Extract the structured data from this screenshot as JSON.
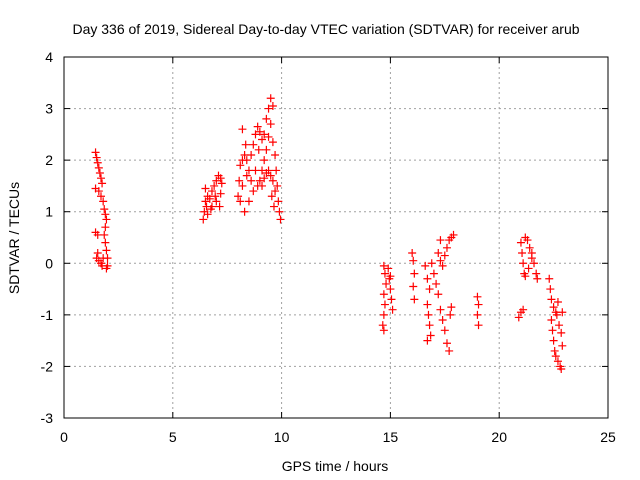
{
  "chart_data": {
    "type": "scatter",
    "title": "Day 336 of 2019, Sidereal Day-to-day VTEC variation (SDTVAR) for receiver arub",
    "xlabel": "GPS time / hours",
    "ylabel": "SDTVAR / TECUs",
    "xlim": [
      0,
      25
    ],
    "ylim": [
      -3,
      4
    ],
    "xticks": [
      0,
      5,
      10,
      15,
      20,
      25
    ],
    "yticks": [
      -3,
      -2,
      -1,
      0,
      1,
      2,
      3,
      4
    ],
    "grid": true,
    "marker": "+",
    "color": "#ff0000",
    "series": [
      {
        "name": "SDTVAR",
        "points": [
          [
            1.45,
            2.15
          ],
          [
            1.5,
            2.05
          ],
          [
            1.55,
            1.95
          ],
          [
            1.6,
            1.85
          ],
          [
            1.65,
            1.75
          ],
          [
            1.7,
            1.65
          ],
          [
            1.75,
            1.55
          ],
          [
            1.45,
            1.45
          ],
          [
            1.6,
            1.4
          ],
          [
            1.7,
            1.3
          ],
          [
            1.8,
            1.2
          ],
          [
            1.85,
            1.05
          ],
          [
            1.9,
            0.95
          ],
          [
            1.95,
            0.85
          ],
          [
            1.9,
            0.7
          ],
          [
            1.85,
            0.55
          ],
          [
            1.9,
            0.4
          ],
          [
            1.95,
            0.25
          ],
          [
            2.0,
            0.1
          ],
          [
            2.0,
            -0.05
          ],
          [
            1.95,
            -0.1
          ],
          [
            1.45,
            0.6
          ],
          [
            1.55,
            0.55
          ],
          [
            1.5,
            0.1
          ],
          [
            1.6,
            0.05
          ],
          [
            1.7,
            0.0
          ],
          [
            1.8,
            0.1
          ],
          [
            1.55,
            0.2
          ],
          [
            1.75,
            -0.05
          ],
          [
            6.4,
            0.85
          ],
          [
            6.45,
            1.0
          ],
          [
            6.5,
            1.2
          ],
          [
            6.55,
            1.1
          ],
          [
            6.6,
            1.3
          ],
          [
            6.7,
            1.25
          ],
          [
            6.8,
            1.4
          ],
          [
            6.9,
            1.5
          ],
          [
            7.0,
            1.6
          ],
          [
            7.1,
            1.7
          ],
          [
            7.2,
            1.65
          ],
          [
            7.25,
            1.55
          ],
          [
            6.6,
            0.95
          ],
          [
            6.8,
            1.1
          ],
          [
            7.0,
            1.2
          ],
          [
            7.2,
            1.35
          ],
          [
            6.5,
            1.45
          ],
          [
            6.75,
            1.05
          ],
          [
            6.95,
            1.3
          ],
          [
            7.15,
            1.1
          ],
          [
            8.0,
            1.3
          ],
          [
            8.05,
            1.6
          ],
          [
            8.1,
            1.9
          ],
          [
            8.2,
            2.0
          ],
          [
            8.3,
            2.1
          ],
          [
            8.4,
            2.0
          ],
          [
            8.5,
            1.8
          ],
          [
            8.6,
            1.6
          ],
          [
            8.7,
            1.4
          ],
          [
            8.5,
            1.2
          ],
          [
            8.3,
            1.0
          ],
          [
            8.1,
            1.2
          ],
          [
            8.2,
            1.5
          ],
          [
            8.4,
            1.7
          ],
          [
            8.6,
            2.1
          ],
          [
            8.7,
            2.3
          ],
          [
            8.8,
            2.5
          ],
          [
            8.9,
            2.65
          ],
          [
            9.0,
            2.55
          ],
          [
            9.1,
            2.4
          ],
          [
            9.2,
            2.5
          ],
          [
            9.3,
            2.8
          ],
          [
            9.4,
            3.0
          ],
          [
            9.5,
            3.2
          ],
          [
            9.6,
            3.05
          ],
          [
            9.5,
            2.7
          ],
          [
            9.4,
            2.45
          ],
          [
            9.3,
            2.2
          ],
          [
            9.2,
            2.0
          ],
          [
            9.1,
            1.8
          ],
          [
            9.0,
            1.6
          ],
          [
            9.1,
            1.5
          ],
          [
            9.2,
            1.65
          ],
          [
            9.3,
            1.75
          ],
          [
            9.4,
            1.8
          ],
          [
            9.5,
            1.7
          ],
          [
            9.6,
            1.6
          ],
          [
            9.7,
            1.4
          ],
          [
            9.75,
            1.8
          ],
          [
            9.8,
            1.5
          ],
          [
            9.85,
            1.2
          ],
          [
            9.9,
            1.0
          ],
          [
            9.95,
            0.85
          ],
          [
            9.7,
            2.1
          ],
          [
            9.6,
            2.35
          ],
          [
            8.9,
            1.5
          ],
          [
            8.8,
            1.8
          ],
          [
            8.95,
            2.2
          ],
          [
            9.55,
            1.3
          ],
          [
            9.65,
            1.1
          ],
          [
            8.35,
            2.3
          ],
          [
            8.2,
            2.6
          ],
          [
            14.7,
            -0.05
          ],
          [
            14.75,
            -0.2
          ],
          [
            14.8,
            -0.4
          ],
          [
            14.7,
            -0.6
          ],
          [
            14.75,
            -0.8
          ],
          [
            14.7,
            -1.0
          ],
          [
            14.65,
            -1.2
          ],
          [
            14.7,
            -1.3
          ],
          [
            14.9,
            -0.1
          ],
          [
            14.95,
            -0.3
          ],
          [
            15.0,
            -0.5
          ],
          [
            15.05,
            -0.7
          ],
          [
            15.1,
            -0.9
          ],
          [
            15.0,
            -0.25
          ],
          [
            16.0,
            0.2
          ],
          [
            16.05,
            0.05
          ],
          [
            16.1,
            -0.2
          ],
          [
            16.05,
            -0.45
          ],
          [
            16.1,
            -0.7
          ],
          [
            16.6,
            -0.05
          ],
          [
            16.7,
            -0.3
          ],
          [
            16.8,
            -0.5
          ],
          [
            16.7,
            -0.8
          ],
          [
            16.75,
            -1.0
          ],
          [
            16.8,
            -1.2
          ],
          [
            16.85,
            -1.4
          ],
          [
            16.7,
            -1.5
          ],
          [
            16.9,
            0.0
          ],
          [
            17.0,
            -0.2
          ],
          [
            17.1,
            -0.4
          ],
          [
            17.2,
            -0.6
          ],
          [
            17.3,
            -0.9
          ],
          [
            17.4,
            -1.1
          ],
          [
            17.5,
            -1.3
          ],
          [
            17.6,
            -1.55
          ],
          [
            17.7,
            -1.7
          ],
          [
            17.2,
            0.2
          ],
          [
            17.3,
            0.05
          ],
          [
            17.4,
            -0.05
          ],
          [
            17.5,
            0.15
          ],
          [
            17.6,
            0.3
          ],
          [
            17.7,
            0.45
          ],
          [
            17.8,
            0.5
          ],
          [
            17.9,
            0.55
          ],
          [
            17.3,
            0.45
          ],
          [
            17.8,
            -0.85
          ],
          [
            17.75,
            -1.0
          ],
          [
            19.0,
            -0.65
          ],
          [
            19.05,
            -0.8
          ],
          [
            19.0,
            -1.0
          ],
          [
            19.05,
            -1.2
          ],
          [
            20.9,
            -1.05
          ],
          [
            21.0,
            -0.95
          ],
          [
            21.1,
            -0.9
          ],
          [
            21.0,
            0.4
          ],
          [
            21.05,
            0.2
          ],
          [
            21.1,
            0.0
          ],
          [
            21.15,
            -0.2
          ],
          [
            21.2,
            0.5
          ],
          [
            21.3,
            0.45
          ],
          [
            21.4,
            0.3
          ],
          [
            21.5,
            0.1
          ],
          [
            21.6,
            0.0
          ],
          [
            21.7,
            -0.2
          ],
          [
            21.75,
            -0.3
          ],
          [
            21.5,
            0.2
          ],
          [
            21.35,
            -0.1
          ],
          [
            21.2,
            -0.25
          ],
          [
            22.3,
            -0.3
          ],
          [
            22.35,
            -0.5
          ],
          [
            22.4,
            -0.7
          ],
          [
            22.5,
            -0.85
          ],
          [
            22.6,
            -0.95
          ],
          [
            22.65,
            -1.0
          ],
          [
            22.7,
            -0.75
          ],
          [
            22.4,
            -1.1
          ],
          [
            22.45,
            -1.3
          ],
          [
            22.5,
            -1.5
          ],
          [
            22.55,
            -1.7
          ],
          [
            22.6,
            -1.8
          ],
          [
            22.7,
            -1.9
          ],
          [
            22.8,
            -2.0
          ],
          [
            22.85,
            -2.05
          ],
          [
            22.9,
            -1.6
          ],
          [
            22.85,
            -1.35
          ],
          [
            22.75,
            -1.2
          ],
          [
            22.9,
            -0.95
          ]
        ]
      }
    ]
  }
}
